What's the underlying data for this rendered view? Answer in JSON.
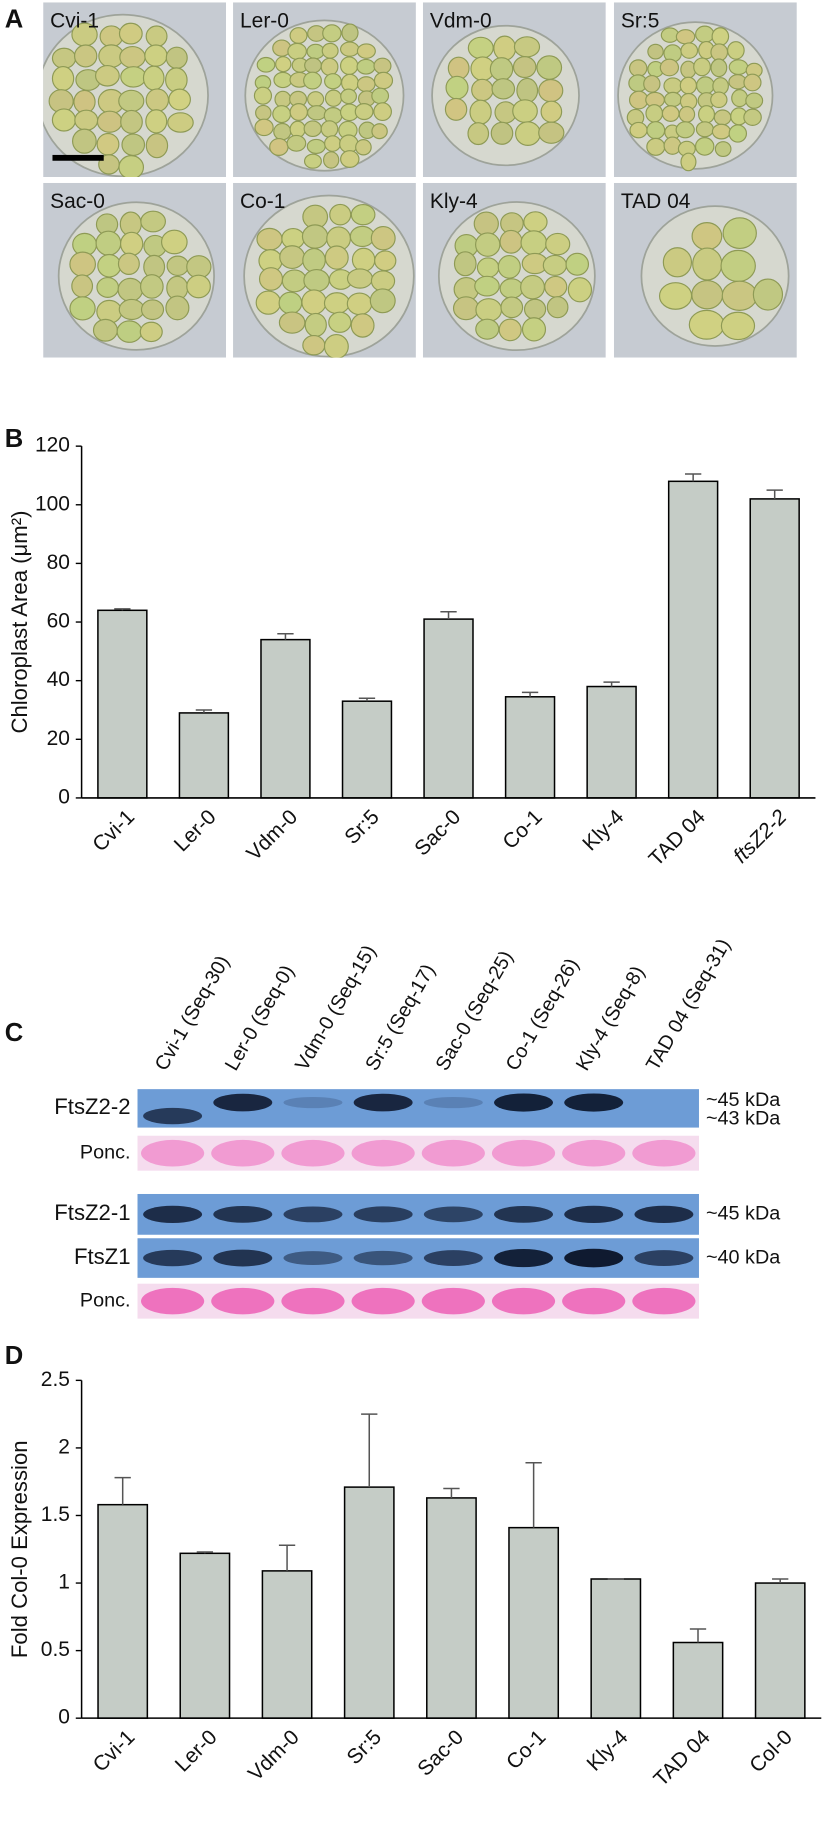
{
  "panel_a": {
    "label": "A",
    "images": [
      "Cvi-1",
      "Ler-0",
      "Vdm-0",
      "Sr:5",
      "Sac-0",
      "Co-1",
      "Kly-4",
      "TAD 04"
    ]
  },
  "chart_data": [
    {
      "type": "bar",
      "panel_label": "B",
      "y_label": "Chloroplast Area (μm²)",
      "categories": [
        "Cvi-1",
        "Ler-0",
        "Vdm-0",
        "Sr:5",
        "Sac-0",
        "Co-1",
        "Kly-4",
        "TAD 04",
        "ftsZ2-2"
      ],
      "values": [
        64,
        29,
        54,
        33,
        61,
        34.5,
        38,
        108,
        102
      ],
      "errors": [
        0.5,
        1,
        2,
        1,
        2.5,
        1.5,
        1.5,
        2.5,
        3
      ],
      "color": "#c5ccc6",
      "ylim": [
        0,
        120
      ],
      "yticks": [
        0,
        20,
        40,
        60,
        80,
        100,
        120
      ],
      "grid": false
    },
    {
      "type": "bar",
      "panel_label": "D",
      "y_label": "Fold Col-0 Expression",
      "categories": [
        "Cvi-1",
        "Ler-0",
        "Vdm-0",
        "Sr:5",
        "Sac-0",
        "Co-1",
        "Kly-4",
        "TAD 04",
        "Col-0"
      ],
      "values": [
        1.58,
        1.22,
        1.09,
        1.71,
        1.63,
        1.41,
        1.03,
        0.56,
        1.0
      ],
      "errors": [
        0.2,
        0.01,
        0.19,
        0.54,
        0.07,
        0.48,
        0,
        0.1,
        0.03
      ],
      "color": "#c5ccc6",
      "ylim": [
        0,
        2.5
      ],
      "yticks": [
        0,
        0.5,
        1,
        1.5,
        2,
        2.5
      ],
      "grid": false
    }
  ],
  "panel_c": {
    "label": "C",
    "lanes": [
      "Cvi-1 (Seq-30)",
      "Ler-0 (Seq-0)",
      "Vdm-0 (Seq-15)",
      "Sr:5 (Seq-17)",
      "Sac-0 (Seq-25)",
      "Co-1 (Seq-26)",
      "Kly-4 (Seq-8)",
      "TAD 04 (Seq-31)"
    ],
    "rows": [
      {
        "label": "FtsZ2-2",
        "markers": [
          "~45 kDa",
          "~43 kDa"
        ]
      },
      {
        "label": "Ponc.",
        "markers": []
      },
      {
        "label": "FtsZ2-1",
        "markers": [
          "~45 kDa"
        ]
      },
      {
        "label": "FtsZ1",
        "markers": [
          "~40 kDa"
        ]
      },
      {
        "label": "Ponc.",
        "markers": []
      }
    ]
  }
}
